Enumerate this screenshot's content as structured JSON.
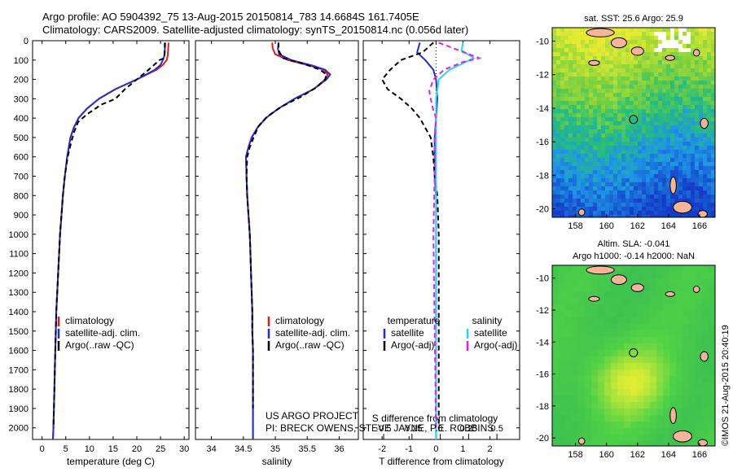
{
  "header": {
    "line1": "Argo profile: AO 5904392_75 13-Aug-2015 20150814_783 14.6684S 161.7405E",
    "line2": "Climatology: CARS2009. Satellite-adjusted climatology: synTS_20150814.nc (0.056d later)"
  },
  "colors": {
    "climatology": "#e41a1c",
    "satellite": "#1f2fd0",
    "argo": "#000000",
    "sal_satellite": "#22d8f0",
    "sal_argo": "#e81ce8"
  },
  "credits": {
    "project": "US ARGO PROJECT",
    "pi": "PI: BRECK OWENS, STEVE JAYNE, P.E. ROBBINS",
    "imos": "©IMOS 21-Aug-2015 20:40:19"
  },
  "chart_data": [
    {
      "type": "line",
      "id": "temperature",
      "xlabel": "temperature (deg C)",
      "ylabel": "",
      "xlim": [
        -2,
        31
      ],
      "ylim": [
        2060,
        0
      ],
      "xticks": [
        0,
        5,
        10,
        15,
        20,
        25,
        30
      ],
      "yticks": [
        0,
        100,
        200,
        300,
        400,
        500,
        600,
        700,
        800,
        900,
        1000,
        1100,
        1200,
        1300,
        1400,
        1500,
        1600,
        1700,
        1800,
        1900,
        2000
      ],
      "legend": [
        "climatology",
        "satellite-adj. clim.",
        "Argo(..raw -QC)"
      ],
      "series": [
        {
          "name": "climatology",
          "color_key": "climatology",
          "x": [
            26.7,
            26.6,
            26.5,
            26.3,
            25.5,
            24.2,
            20,
            15.5,
            12,
            9.5,
            7.7,
            6.7,
            6,
            5.3,
            4.8,
            4.4,
            4.1,
            3.8,
            3.6,
            3.4,
            3.2,
            3,
            2.9,
            2.8,
            2.7,
            2.6,
            2.5,
            2.4,
            2.35,
            2.3
          ],
          "y": [
            10,
            50,
            80,
            100,
            125,
            150,
            200,
            250,
            300,
            350,
            400,
            450,
            500,
            600,
            700,
            800,
            900,
            1000,
            1100,
            1200,
            1300,
            1400,
            1500,
            1600,
            1700,
            1800,
            1900,
            2000,
            2030,
            2060
          ]
        },
        {
          "name": "satellite-adj. clim.",
          "color_key": "satellite",
          "x": [
            26,
            25.9,
            25.8,
            25.5,
            25,
            23.8,
            20,
            15.5,
            12,
            9.5,
            7.7,
            6.7,
            6,
            5.3,
            4.8,
            4.4,
            4.1,
            3.8,
            3.6,
            3.4,
            3.2,
            3,
            2.9,
            2.8,
            2.7,
            2.6,
            2.5,
            2.4,
            2.35,
            2.3
          ],
          "y": [
            10,
            50,
            80,
            100,
            125,
            150,
            200,
            250,
            300,
            350,
            400,
            450,
            500,
            600,
            700,
            800,
            900,
            1000,
            1100,
            1200,
            1300,
            1400,
            1500,
            1600,
            1700,
            1800,
            1900,
            2000,
            2030,
            2060
          ]
        },
        {
          "name": "Argo(..raw -QC)",
          "color_key": "argo",
          "x": [
            25.9,
            25.9,
            25.8,
            24.8,
            22.5,
            20,
            17.5,
            15.5,
            12.5,
            9.5,
            7.6,
            6.8,
            6.2,
            5.4,
            4.8,
            4.4,
            4.1,
            3.8,
            3.6,
            3.4,
            3.2,
            3,
            2.9,
            2.8,
            2.7,
            2.6,
            2.5,
            2.4
          ],
          "y": [
            10,
            60,
            90,
            100,
            150,
            200,
            250,
            300,
            330,
            380,
            420,
            470,
            520,
            600,
            700,
            800,
            900,
            1000,
            1100,
            1200,
            1300,
            1400,
            1500,
            1600,
            1700,
            1800,
            1900,
            2000
          ]
        }
      ]
    },
    {
      "type": "line",
      "id": "salinity",
      "xlabel": "salinity",
      "ylabel": "",
      "xlim": [
        33.75,
        36.3
      ],
      "ylim": [
        2060,
        0
      ],
      "xticks": [
        34,
        34.5,
        35,
        35.5,
        36
      ],
      "legend": [
        "climatology",
        "satellite-adj. clim.",
        "Argo(..raw -QC)"
      ],
      "series": [
        {
          "name": "climatology",
          "color_key": "climatology",
          "x": [
            34.95,
            34.96,
            35,
            35.2,
            35.55,
            35.75,
            35.82,
            35.78,
            35.6,
            35.3,
            35.05,
            34.85,
            34.72,
            34.63,
            34.58,
            34.54,
            34.55,
            34.56,
            34.58,
            34.6,
            34.61,
            34.62,
            34.63,
            34.64,
            34.64,
            34.65,
            34.65,
            34.65,
            34.65,
            34.65,
            34.65
          ],
          "y": [
            10,
            40,
            70,
            100,
            130,
            150,
            175,
            200,
            250,
            300,
            350,
            400,
            450,
            500,
            550,
            600,
            700,
            800,
            900,
            1000,
            1100,
            1200,
            1300,
            1400,
            1500,
            1600,
            1700,
            1800,
            1900,
            2000,
            2060
          ]
        },
        {
          "name": "satellite-adj. clim.",
          "color_key": "satellite",
          "x": [
            35.05,
            35.04,
            35.06,
            35.25,
            35.6,
            35.78,
            35.86,
            35.8,
            35.6,
            35.3,
            35.05,
            34.85,
            34.72,
            34.63,
            34.58,
            34.54,
            34.55,
            34.56,
            34.58,
            34.6,
            34.61,
            34.62,
            34.63,
            34.64,
            34.64,
            34.65,
            34.65,
            34.65,
            34.65,
            34.65,
            34.65
          ],
          "y": [
            10,
            40,
            70,
            100,
            130,
            150,
            175,
            200,
            250,
            300,
            350,
            400,
            450,
            500,
            550,
            600,
            700,
            800,
            900,
            1000,
            1100,
            1200,
            1300,
            1400,
            1500,
            1600,
            1700,
            1800,
            1900,
            2000,
            2060
          ]
        },
        {
          "name": "Argo(..raw -QC)",
          "color_key": "argo",
          "x": [
            35.05,
            35.05,
            35.12,
            35.45,
            35.7,
            35.8,
            35.78,
            35.65,
            35.4,
            35.1,
            34.88,
            34.74,
            34.66,
            34.6,
            34.56,
            34.55,
            34.56,
            34.58,
            34.6,
            34.61,
            34.62,
            34.63,
            34.64,
            34.64,
            34.65,
            34.65,
            34.65,
            34.65
          ],
          "y": [
            10,
            50,
            90,
            120,
            150,
            175,
            200,
            240,
            290,
            340,
            390,
            440,
            500,
            550,
            600,
            700,
            800,
            900,
            1000,
            1100,
            1200,
            1300,
            1400,
            1500,
            1600,
            1700,
            1800,
            1900
          ]
        }
      ]
    },
    {
      "type": "line",
      "id": "difference",
      "xlabel": "T difference from climatology",
      "xlabel2": "S difference from climatology",
      "xlim": [
        -2.7,
        3.1
      ],
      "ylim": [
        2060,
        0
      ],
      "xticks": [
        -2,
        -1,
        0,
        1,
        2
      ],
      "xticks_top": [
        -0.5,
        -0.25,
        0,
        0.25,
        0.5
      ],
      "xticks_top_labels": [
        "-0.5",
        "-0.25",
        "0",
        "0.25",
        "0.5"
      ],
      "legend_headers": [
        "temperature",
        "salinity"
      ],
      "legend": [
        "satellite",
        "Argo(-adj)",
        "satellite",
        "Argo(-adj)"
      ],
      "series": [
        {
          "name": "satellite",
          "color_key": "satellite",
          "x": [
            -0.6,
            -0.7,
            -0.4,
            -0.1,
            0,
            0.05,
            0,
            -0.05,
            -0.05,
            -0.05,
            0,
            0,
            0,
            0,
            0,
            0,
            0,
            0
          ],
          "y": [
            10,
            60,
            100,
            150,
            200,
            300,
            400,
            500,
            600,
            700,
            800,
            1000,
            1200,
            1400,
            1600,
            1800,
            2000,
            2060
          ]
        },
        {
          "name": "Argo(-adj)",
          "color_key": "argo",
          "x": [
            -0.1,
            -0.5,
            -1.3,
            -1.7,
            -2,
            -1.8,
            -1.3,
            -0.9,
            -0.6,
            -0.4,
            -0.2,
            -0.1,
            -0.05,
            0.05,
            0.1,
            0.1,
            0.1,
            0.1
          ],
          "y": [
            10,
            60,
            100,
            150,
            200,
            250,
            300,
            350,
            400,
            450,
            500,
            600,
            700,
            800,
            1000,
            1400,
            1800,
            2000
          ]
        },
        {
          "name": "satellite",
          "color_key": "sal_satellite",
          "x": [
            1.0,
            0.95,
            1.4,
            0.5,
            0.1,
            0,
            0,
            0,
            0,
            0,
            0,
            0,
            0,
            0
          ],
          "y": [
            10,
            50,
            90,
            150,
            200,
            300,
            400,
            600,
            800,
            1000,
            1400,
            1800,
            2000,
            2060
          ]
        },
        {
          "name": "Argo(-adj)",
          "color_key": "sal_argo",
          "x": [
            0.1,
            1.6,
            1.0,
            0.3,
            -0.1,
            -0.25,
            -0.2,
            -0.1,
            0,
            -0.05,
            -0.05,
            -0.1,
            -0.05,
            0
          ],
          "y": [
            10,
            90,
            110,
            150,
            200,
            260,
            300,
            360,
            400,
            500,
            700,
            1000,
            1500,
            2000
          ]
        }
      ]
    },
    {
      "type": "heatmap",
      "id": "sst_map",
      "title": "sat. SST: 25.6  Argo: 25.9",
      "xlim": [
        156.5,
        167
      ],
      "ylim": [
        -20.5,
        -9.2
      ],
      "xticks": [
        158,
        160,
        162,
        164,
        166
      ],
      "yticks": [
        -10,
        -12,
        -14,
        -16,
        -18,
        -20
      ],
      "argo_position": [
        161.74,
        -14.67
      ]
    },
    {
      "type": "heatmap",
      "id": "sla_map",
      "title": "Altim. SLA: -0.041",
      "subtitle": "Argo h1000: -0.14  h2000: NaN",
      "xlim": [
        156.5,
        167
      ],
      "ylim": [
        -20.5,
        -9.2
      ],
      "xticks": [
        158,
        160,
        162,
        164,
        166
      ],
      "yticks": [
        -10,
        -12,
        -14,
        -16,
        -18,
        -20
      ],
      "argo_position": [
        161.74,
        -14.67
      ]
    }
  ]
}
